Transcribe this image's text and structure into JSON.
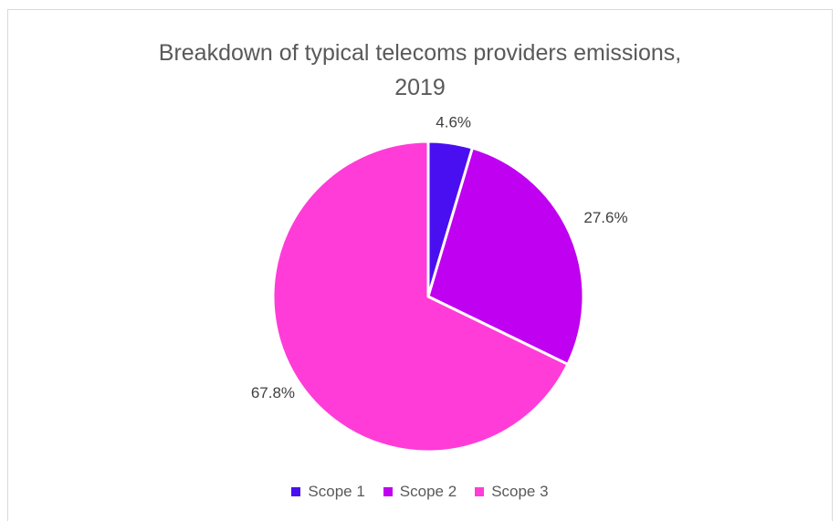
{
  "chart_data": {
    "type": "pie",
    "title_lines": [
      "Breakdown of typical telecoms providers emissions,",
      "2019"
    ],
    "categories": [
      "Scope 1",
      "Scope 2",
      "Scope 3"
    ],
    "values": [
      4.6,
      27.6,
      67.8
    ],
    "labels": [
      "4.6%",
      "27.6%",
      "67.8%"
    ],
    "colors": [
      "#4a0ff0",
      "#c000f0",
      "#ff3cd8"
    ],
    "legend_position": "bottom"
  }
}
